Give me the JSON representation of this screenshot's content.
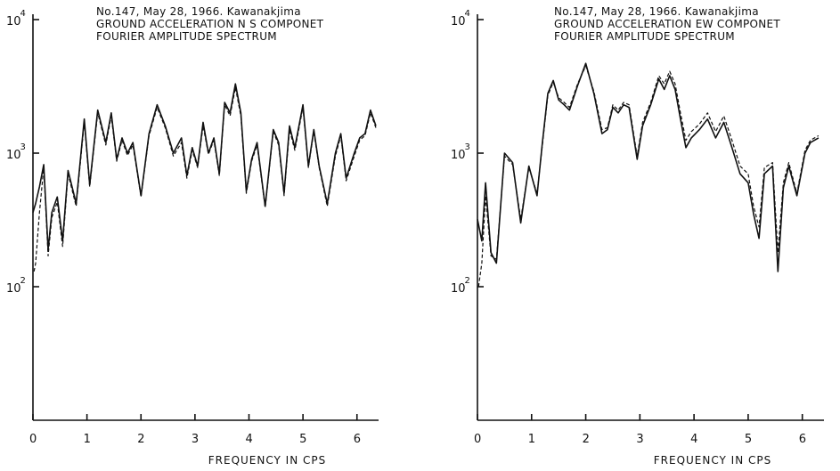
{
  "chart_data": [
    {
      "type": "line",
      "title_lines": [
        "No.147, May 28, 1966. Kawanakjima",
        "GROUND ACCELERATION N S COMPONET",
        "FOURIER AMPLITUDE SPECTRUM"
      ],
      "xlabel": "FREQUENCY IN CPS",
      "ylabel": "",
      "x_ticks": [
        "0",
        "1",
        "2",
        "3",
        "4",
        "5",
        "6"
      ],
      "y_ticks": [
        {
          "value": 100,
          "base": "10",
          "exp": "2"
        },
        {
          "value": 1000,
          "base": "10",
          "exp": "3"
        },
        {
          "value": 10000,
          "base": "10",
          "exp": "4"
        }
      ],
      "xlim": [
        0,
        6.4
      ],
      "ylim": [
        10,
        10000
      ],
      "yscale": "log",
      "grid": false,
      "series": [
        {
          "style": "solid",
          "x": [
            0,
            0.05,
            0.12,
            0.2,
            0.28,
            0.35,
            0.45,
            0.55,
            0.65,
            0.8,
            0.95,
            1.05,
            1.2,
            1.35,
            1.45,
            1.55,
            1.65,
            1.75,
            1.85,
            2.0,
            2.15,
            2.3,
            2.45,
            2.6,
            2.75,
            2.85,
            2.95,
            3.05,
            3.15,
            3.25,
            3.35,
            3.45,
            3.55,
            3.65,
            3.75,
            3.85,
            3.95,
            4.05,
            4.15,
            4.3,
            4.45,
            4.55,
            4.65,
            4.75,
            4.85,
            5.0,
            5.1,
            5.2,
            5.3,
            5.45,
            5.6,
            5.7,
            5.8,
            5.95,
            6.05,
            6.15,
            6.25,
            6.35
          ],
          "y": [
            360,
            420,
            560,
            820,
            190,
            360,
            470,
            220,
            740,
            420,
            1800,
            580,
            2100,
            1200,
            2000,
            900,
            1300,
            1000,
            1200,
            480,
            1400,
            2300,
            1600,
            1000,
            1300,
            680,
            1100,
            800,
            1700,
            1000,
            1300,
            700,
            2400,
            2000,
            3300,
            2000,
            520,
            900,
            1200,
            400,
            1500,
            1200,
            500,
            1600,
            1100,
            2300,
            800,
            1500,
            800,
            420,
            1000,
            1400,
            650,
            1000,
            1300,
            1400,
            2100,
            1600
          ]
        },
        {
          "style": "dashed",
          "x": [
            0.02,
            0.05,
            0.12,
            0.2,
            0.28,
            0.35,
            0.45,
            0.55,
            0.65,
            0.8,
            0.95,
            1.05,
            1.2,
            1.35,
            1.45,
            1.55,
            1.65,
            1.75,
            1.85,
            2.0,
            2.15,
            2.3,
            2.45,
            2.6,
            2.75,
            2.85,
            2.95,
            3.05,
            3.15,
            3.25,
            3.35,
            3.45,
            3.55,
            3.65,
            3.75,
            3.85,
            3.95,
            4.05,
            4.15,
            4.3,
            4.45,
            4.55,
            4.65,
            4.75,
            4.85,
            5.0,
            5.1,
            5.2,
            5.3,
            5.45,
            5.6,
            5.7,
            5.8,
            5.95,
            6.05,
            6.15,
            6.25,
            6.35
          ],
          "y": [
            130,
            150,
            360,
            780,
            170,
            330,
            430,
            200,
            700,
            400,
            1700,
            560,
            2000,
            1150,
            1900,
            870,
            1250,
            960,
            1150,
            470,
            1350,
            2200,
            1550,
            950,
            1200,
            650,
            1050,
            780,
            1600,
            980,
            1250,
            680,
            2300,
            1900,
            3100,
            1900,
            500,
            870,
            1150,
            390,
            1450,
            1150,
            480,
            1500,
            1050,
            2200,
            780,
            1450,
            780,
            400,
            950,
            1350,
            620,
            950,
            1250,
            1350,
            2000,
            1550
          ]
        }
      ]
    },
    {
      "type": "line",
      "title_lines": [
        "No.147, May 28, 1966. Kawanakjima",
        "GROUND ACCELERATION EW COMPONET",
        "FOURIER AMPLITUDE SPECTRUM"
      ],
      "xlabel": "FREQUENCY IN CPS",
      "ylabel": "",
      "x_ticks": [
        "0",
        "1",
        "2",
        "3",
        "4",
        "5",
        "6"
      ],
      "y_ticks": [
        {
          "value": 100,
          "base": "10",
          "exp": "2"
        },
        {
          "value": 1000,
          "base": "10",
          "exp": "3"
        },
        {
          "value": 10000,
          "base": "10",
          "exp": "4"
        }
      ],
      "xlim": [
        0,
        6.4
      ],
      "ylim": [
        10,
        10000
      ],
      "yscale": "log",
      "grid": false,
      "series": [
        {
          "style": "solid",
          "x": [
            0,
            0.08,
            0.15,
            0.25,
            0.35,
            0.5,
            0.65,
            0.8,
            0.95,
            1.1,
            1.2,
            1.3,
            1.4,
            1.5,
            1.6,
            1.7,
            1.85,
            2.0,
            2.15,
            2.3,
            2.4,
            2.5,
            2.6,
            2.7,
            2.8,
            2.95,
            3.05,
            3.2,
            3.35,
            3.45,
            3.55,
            3.65,
            3.75,
            3.85,
            3.95,
            4.1,
            4.25,
            4.4,
            4.55,
            4.7,
            4.85,
            5.0,
            5.1,
            5.2,
            5.3,
            5.45,
            5.55,
            5.65,
            5.75,
            5.9,
            6.05,
            6.15,
            6.3
          ],
          "y": [
            320,
            220,
            600,
            180,
            150,
            1000,
            850,
            300,
            800,
            480,
            1200,
            2800,
            3500,
            2500,
            2300,
            2100,
            3200,
            4700,
            2800,
            1400,
            1500,
            2200,
            2000,
            2300,
            2200,
            900,
            1600,
            2300,
            3600,
            3000,
            3800,
            3000,
            1800,
            1100,
            1300,
            1500,
            1800,
            1300,
            1700,
            1100,
            700,
            600,
            350,
            230,
            700,
            800,
            130,
            550,
            800,
            480,
            1000,
            1200,
            1300
          ]
        },
        {
          "style": "dashed",
          "x": [
            0.02,
            0.08,
            0.15,
            0.25,
            0.35,
            0.5,
            0.65,
            0.8,
            0.95,
            1.1,
            1.2,
            1.3,
            1.4,
            1.5,
            1.6,
            1.7,
            1.85,
            2.0,
            2.15,
            2.3,
            2.4,
            2.5,
            2.6,
            2.7,
            2.8,
            2.95,
            3.05,
            3.2,
            3.35,
            3.45,
            3.55,
            3.65,
            3.75,
            3.85,
            3.95,
            4.1,
            4.25,
            4.4,
            4.55,
            4.7,
            4.85,
            5.0,
            5.1,
            5.2,
            5.3,
            5.45,
            5.55,
            5.65,
            5.75,
            5.9,
            6.05,
            6.15,
            6.3
          ],
          "y": [
            100,
            150,
            480,
            170,
            160,
            950,
            820,
            320,
            780,
            500,
            1150,
            2700,
            3400,
            2600,
            2400,
            2200,
            3300,
            4500,
            2900,
            1500,
            1550,
            2300,
            2100,
            2400,
            2300,
            950,
            1700,
            2400,
            3800,
            3300,
            4100,
            3300,
            2000,
            1250,
            1450,
            1650,
            2000,
            1450,
            1900,
            1250,
            800,
            700,
            400,
            280,
            780,
            850,
            180,
            600,
            850,
            500,
            1050,
            1250,
            1350
          ]
        }
      ]
    }
  ]
}
